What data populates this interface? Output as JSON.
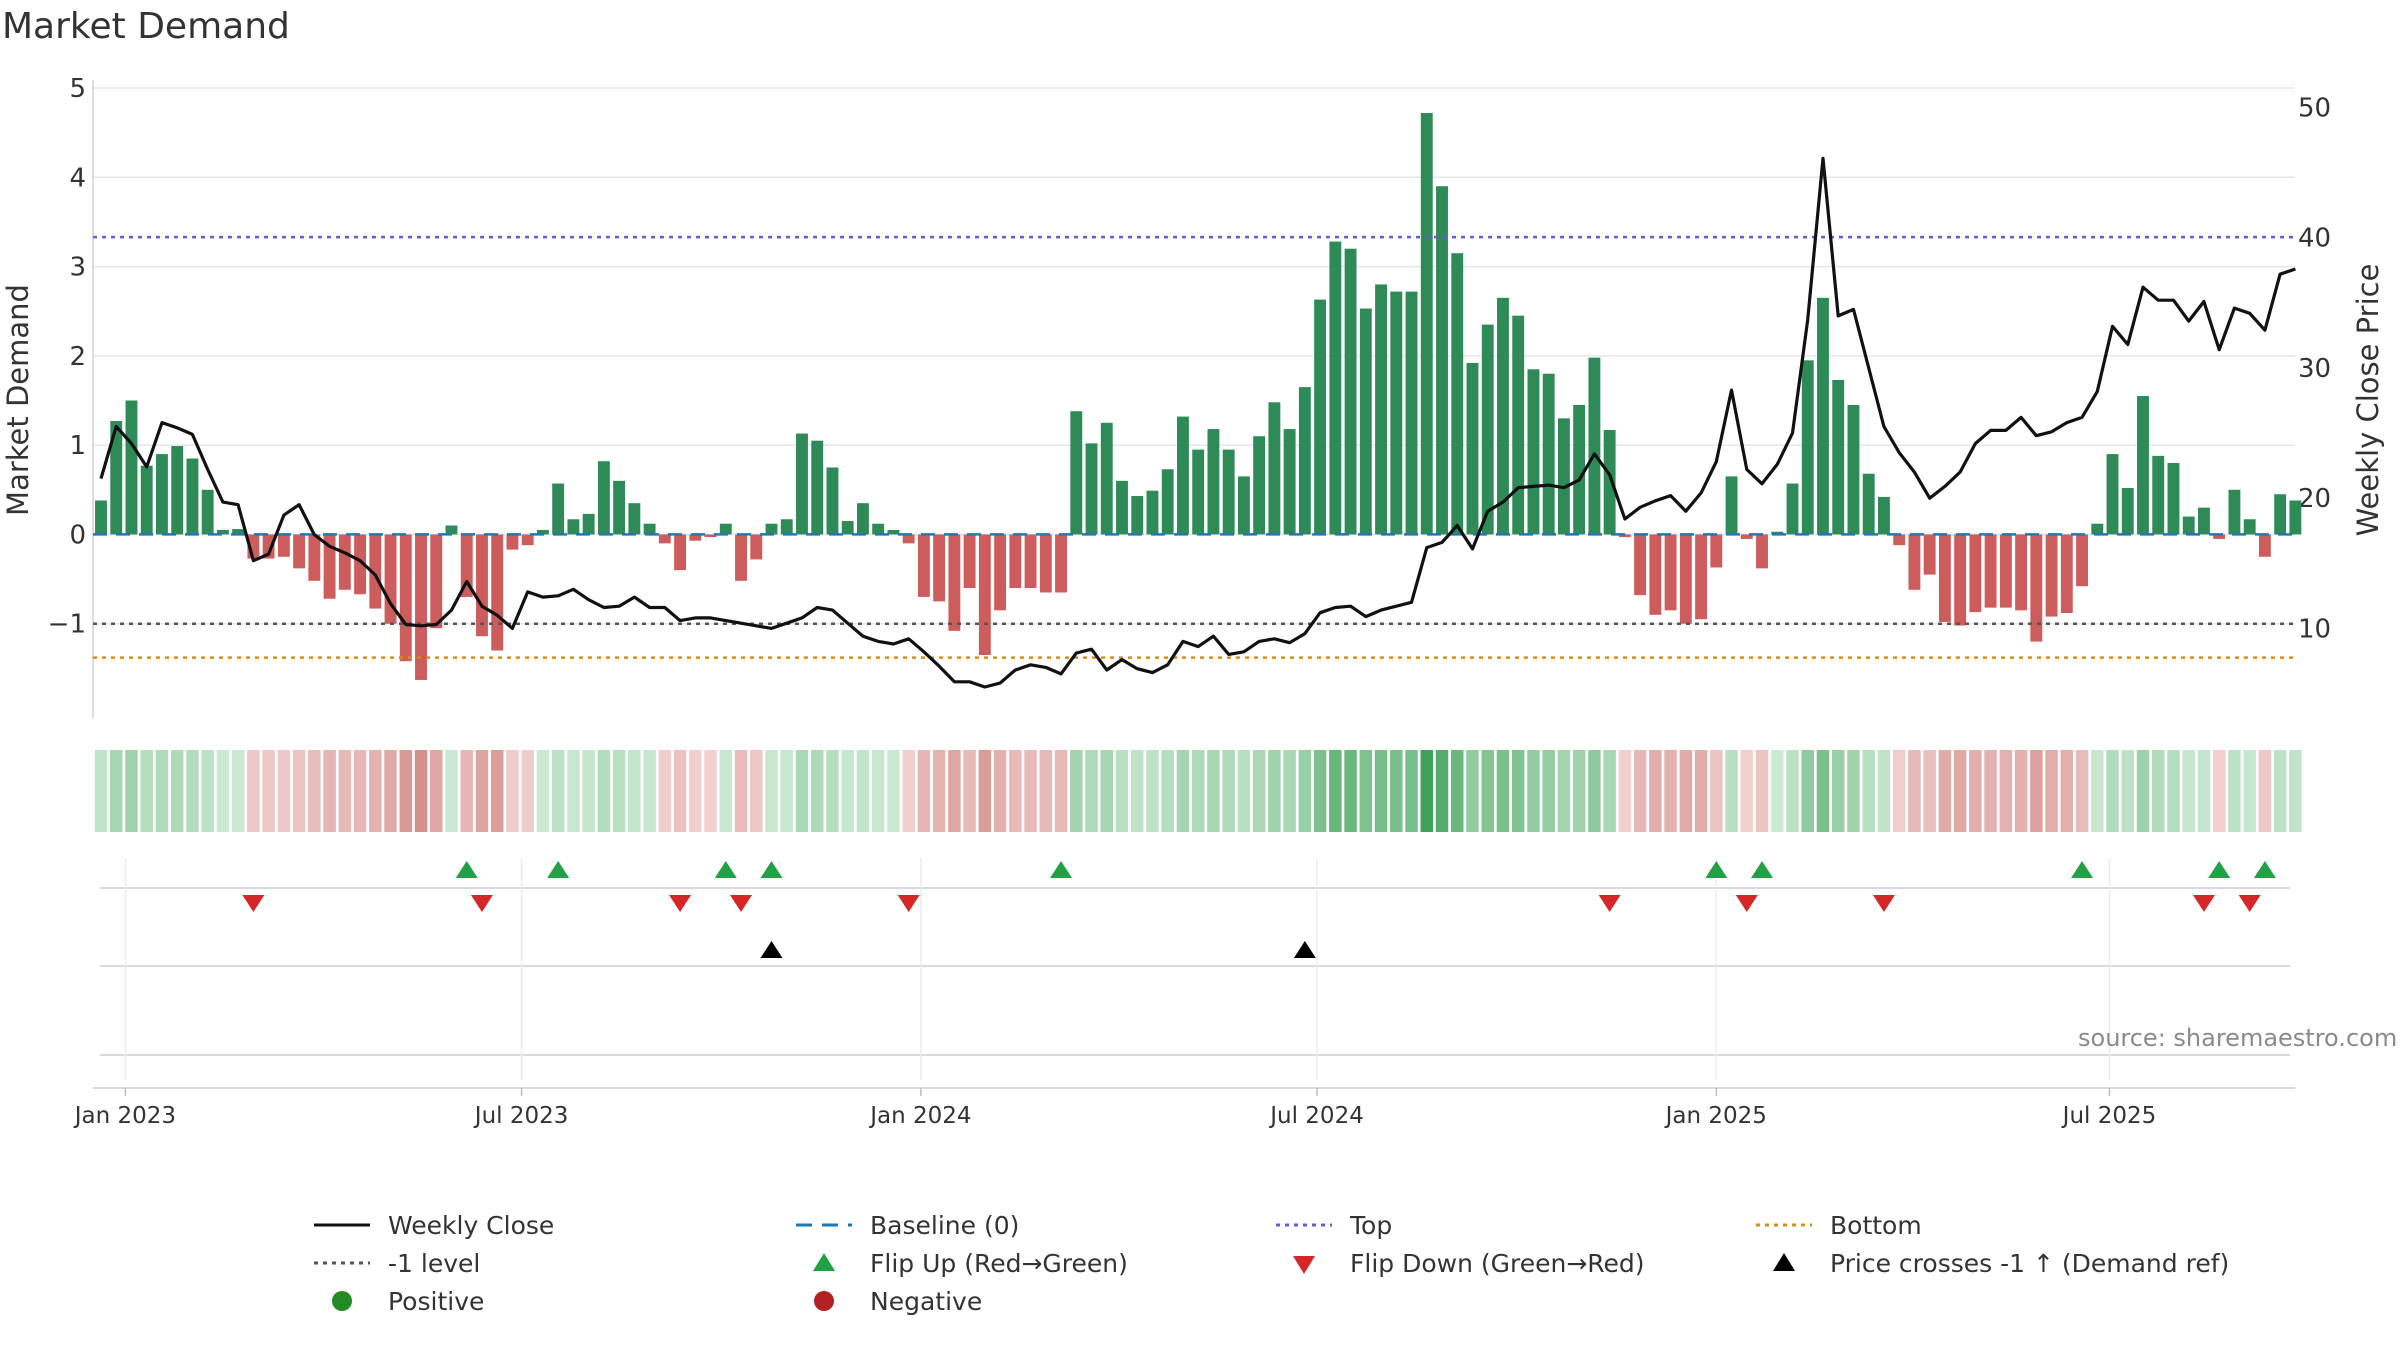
{
  "title": "Market Demand",
  "source": "source: sharemaestro.com",
  "colors": {
    "positive": "#2e8b57",
    "negative": "#cd5c5c",
    "price_line": "#111111",
    "baseline": "#1f77b4",
    "top": "#6a5acd",
    "minus_one": "#555555",
    "bottom": "#d98c1a",
    "flip_up": "#22a045",
    "flip_down": "#d62728",
    "cross": "#000000",
    "pos_dot": "#228b22",
    "neg_dot": "#b22222"
  },
  "chart_data": {
    "type": "bar",
    "title": "Market Demand",
    "ylabel": "Market Demand",
    "y2label": "Weekly Close Price",
    "ylim": [
      -2,
      5
    ],
    "y2lim": [
      3.5,
      51.5
    ],
    "yticks": [
      "5",
      "4",
      "3",
      "2",
      "1",
      "0",
      "−1"
    ],
    "y2ticks": [
      "50",
      "40",
      "30",
      "20",
      "10"
    ],
    "xticks": [
      {
        "label": "Jan 2023",
        "week": 1.6
      },
      {
        "label": "Jul 2023",
        "week": 27.6
      },
      {
        "label": "Jan 2024",
        "week": 53.8
      },
      {
        "label": "Jul 2024",
        "week": 79.8
      },
      {
        "label": "Jan 2025",
        "week": 106.0
      },
      {
        "label": "Jul 2025",
        "week": 131.8
      }
    ],
    "levels": {
      "top": 3.33,
      "minus_one": -1.0,
      "bottom": -1.38,
      "baseline": 0
    },
    "demand": [
      0.38,
      1.27,
      1.5,
      0.77,
      0.9,
      0.99,
      0.85,
      0.5,
      0.05,
      0.06,
      -0.27,
      -0.27,
      -0.25,
      -0.38,
      -0.52,
      -0.72,
      -0.62,
      -0.67,
      -0.83,
      -1.0,
      -1.42,
      -1.63,
      -1.05,
      0.1,
      -0.7,
      -1.14,
      -1.3,
      -0.17,
      -0.12,
      0.05,
      0.57,
      0.17,
      0.23,
      0.82,
      0.6,
      0.35,
      0.12,
      -0.1,
      -0.4,
      -0.07,
      -0.03,
      0.12,
      -0.52,
      -0.28,
      0.12,
      0.17,
      1.13,
      1.05,
      0.75,
      0.15,
      0.35,
      0.12,
      0.05,
      -0.1,
      -0.7,
      -0.75,
      -1.08,
      -0.6,
      -1.35,
      -0.85,
      -0.6,
      -0.6,
      -0.65,
      -0.65,
      1.38,
      1.02,
      1.25,
      0.6,
      0.43,
      0.49,
      0.73,
      1.32,
      0.95,
      1.18,
      0.95,
      0.65,
      1.1,
      1.48,
      1.18,
      1.65,
      2.63,
      3.28,
      3.2,
      2.53,
      2.8,
      2.72,
      2.72,
      4.72,
      3.9,
      3.15,
      1.92,
      2.35,
      2.65,
      2.45,
      1.85,
      1.8,
      1.3,
      1.45,
      1.98,
      1.17,
      -0.03,
      -0.68,
      -0.9,
      -0.85,
      -1.0,
      -0.95,
      -0.37,
      0.65,
      -0.05,
      -0.38,
      0.03,
      0.57,
      1.95,
      2.65,
      1.73,
      1.45,
      0.68,
      0.42,
      -0.12,
      -0.62,
      -0.45,
      -0.98,
      -1.02,
      -0.87,
      -0.82,
      -0.82,
      -0.85,
      -1.2,
      -0.92,
      -0.88,
      -0.58,
      0.12,
      0.9,
      0.52,
      1.55,
      0.88,
      0.8,
      0.2,
      0.3,
      -0.05,
      0.5,
      0.17,
      -0.25,
      0.45,
      0.38
    ],
    "weekly_close": [
      21.5,
      25.5,
      24.2,
      22.4,
      25.8,
      25.4,
      24.9,
      22.2,
      19.7,
      19.5,
      15.2,
      15.7,
      18.7,
      19.5,
      17.2,
      16.3,
      15.8,
      15.2,
      14.1,
      11.9,
      10.3,
      10.2,
      10.3,
      11.4,
      13.6,
      11.7,
      11.0,
      10.0,
      12.8,
      12.4,
      12.5,
      13.0,
      12.2,
      11.6,
      11.7,
      12.4,
      11.6,
      11.6,
      10.6,
      10.8,
      10.8,
      10.6,
      10.4,
      10.2,
      10.0,
      10.4,
      10.8,
      11.6,
      11.4,
      10.4,
      9.4,
      9.0,
      8.8,
      9.2,
      8.2,
      7.1,
      5.9,
      5.9,
      5.5,
      5.8,
      6.8,
      7.2,
      7.0,
      6.5,
      8.1,
      8.4,
      6.8,
      7.6,
      6.9,
      6.6,
      7.2,
      9.0,
      8.6,
      9.4,
      8.0,
      8.2,
      9.0,
      9.2,
      8.9,
      9.6,
      11.2,
      11.6,
      11.7,
      10.9,
      11.4,
      11.7,
      12.0,
      16.2,
      16.6,
      17.9,
      16.1,
      19.0,
      19.7,
      20.8,
      20.9,
      21.0,
      20.8,
      21.4,
      23.4,
      21.8,
      18.4,
      19.3,
      19.8,
      20.2,
      19.0,
      20.4,
      22.8,
      28.3,
      22.2,
      21.1,
      22.6,
      25.0,
      33.7,
      46.1,
      34.0,
      34.5,
      30.0,
      25.5,
      23.5,
      22.0,
      20.0,
      20.9,
      22.0,
      24.2,
      25.2,
      25.2,
      26.2,
      24.8,
      25.1,
      25.8,
      26.2,
      28.2,
      33.2,
      31.8,
      36.2,
      35.2,
      35.2,
      33.6,
      35.1,
      31.4,
      34.6,
      34.2,
      32.9,
      37.2,
      37.6
    ],
    "heat_strip": "weekly demand intensity (green = positive, red = negative)",
    "flip_up_weeks": [
      24,
      30,
      41,
      44,
      63,
      106,
      109,
      130,
      139,
      142
    ],
    "flip_down_weeks": [
      10,
      25,
      38,
      42,
      53,
      99,
      108,
      117,
      138,
      141
    ],
    "price_cross_weeks": [
      44,
      79
    ]
  },
  "legend": [
    {
      "key": "close",
      "label": "Weekly Close",
      "symbol": "line"
    },
    {
      "key": "baseline",
      "label": "Baseline (0)",
      "symbol": "dash"
    },
    {
      "key": "top",
      "label": "Top",
      "symbol": "dot"
    },
    {
      "key": "bottom",
      "label": "Bottom",
      "symbol": "dot"
    },
    {
      "key": "minus_one",
      "label": "-1 level",
      "symbol": "dot"
    },
    {
      "key": "flip_up",
      "label": "Flip Up (Red→Green)",
      "symbol": "tri-up"
    },
    {
      "key": "flip_down",
      "label": "Flip Down (Green→Red)",
      "symbol": "tri-down"
    },
    {
      "key": "cross",
      "label": "Price crosses -1 ↑ (Demand ref)",
      "symbol": "tri-up"
    },
    {
      "key": "pos_dot",
      "label": "Positive",
      "symbol": "circle"
    },
    {
      "key": "neg_dot",
      "label": "Negative",
      "symbol": "circle"
    }
  ]
}
